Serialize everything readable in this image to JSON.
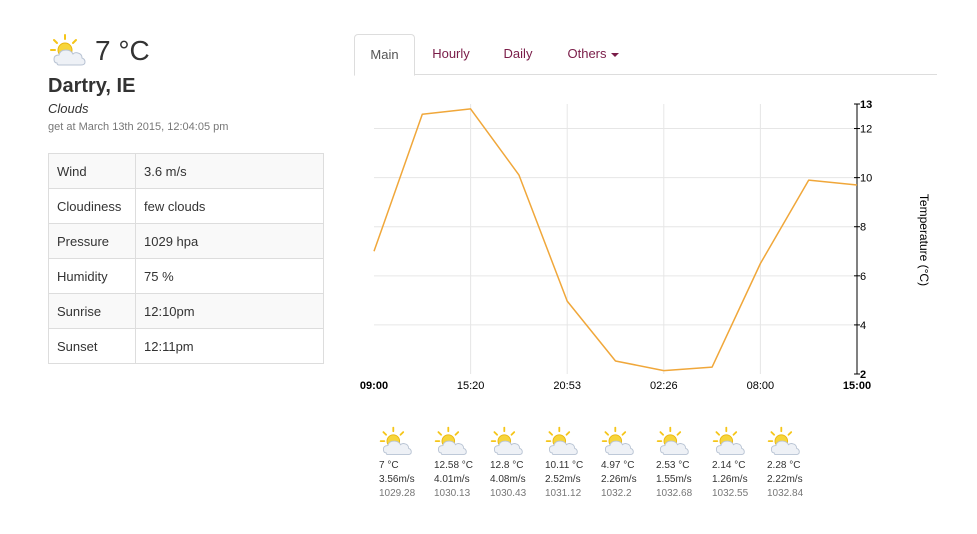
{
  "current": {
    "icon": "partly-cloudy-sun-icon",
    "temperature": "7 °C",
    "location": "Dartry, IE",
    "condition": "Clouds",
    "updated": "get at March 13th 2015, 12:04:05 pm"
  },
  "details": [
    {
      "label": "Wind",
      "value": "3.6 m/s"
    },
    {
      "label": "Cloudiness",
      "value": "few clouds"
    },
    {
      "label": "Pressure",
      "value": "1029 hpa"
    },
    {
      "label": "Humidity",
      "value": "75 %"
    },
    {
      "label": "Sunrise",
      "value": "12:10pm"
    },
    {
      "label": "Sunset",
      "value": "12:11pm"
    }
  ],
  "tabs": [
    {
      "label": "Main",
      "active": true
    },
    {
      "label": "Hourly",
      "active": false
    },
    {
      "label": "Daily",
      "active": false
    },
    {
      "label": "Others",
      "active": false,
      "dropdown": true
    }
  ],
  "chart_data": {
    "type": "line",
    "ylabel": "Temperature (°C)",
    "y_axis_position": "right",
    "grid": true,
    "line_color": "#f0a73a",
    "x_tick_labels": [
      "09:00",
      "15:20",
      "20:53",
      "02:26",
      "08:00",
      "15:00"
    ],
    "y_ticks": [
      2,
      4,
      6,
      8,
      10,
      12,
      13
    ],
    "ylim": [
      2,
      13
    ],
    "series": [
      {
        "values": [
          7.0,
          12.58,
          12.8,
          10.11,
          4.97,
          2.53,
          2.14,
          2.28,
          6.5,
          9.9,
          9.7
        ]
      }
    ]
  },
  "forecast": [
    {
      "icon": "partly-cloudy-sun-icon",
      "temp": "7 °C",
      "wind": "3.56m/s",
      "pressure": "1029.28"
    },
    {
      "icon": "partly-cloudy-sun-icon",
      "temp": "12.58 °C",
      "wind": "4.01m/s",
      "pressure": "1030.13"
    },
    {
      "icon": "partly-cloudy-sun-icon",
      "temp": "12.8 °C",
      "wind": "4.08m/s",
      "pressure": "1030.43"
    },
    {
      "icon": "partly-cloudy-sun-icon",
      "temp": "10.11 °C",
      "wind": "2.52m/s",
      "pressure": "1031.12"
    },
    {
      "icon": "partly-cloudy-sun-icon",
      "temp": "4.97 °C",
      "wind": "2.26m/s",
      "pressure": "1032.2"
    },
    {
      "icon": "partly-cloudy-sun-icon",
      "temp": "2.53 °C",
      "wind": "1.55m/s",
      "pressure": "1032.68"
    },
    {
      "icon": "partly-cloudy-sun-icon",
      "temp": "2.14 °C",
      "wind": "1.26m/s",
      "pressure": "1032.55"
    },
    {
      "icon": "partly-cloudy-sun-icon",
      "temp": "2.28 °C",
      "wind": "2.22m/s",
      "pressure": "1032.84"
    }
  ]
}
